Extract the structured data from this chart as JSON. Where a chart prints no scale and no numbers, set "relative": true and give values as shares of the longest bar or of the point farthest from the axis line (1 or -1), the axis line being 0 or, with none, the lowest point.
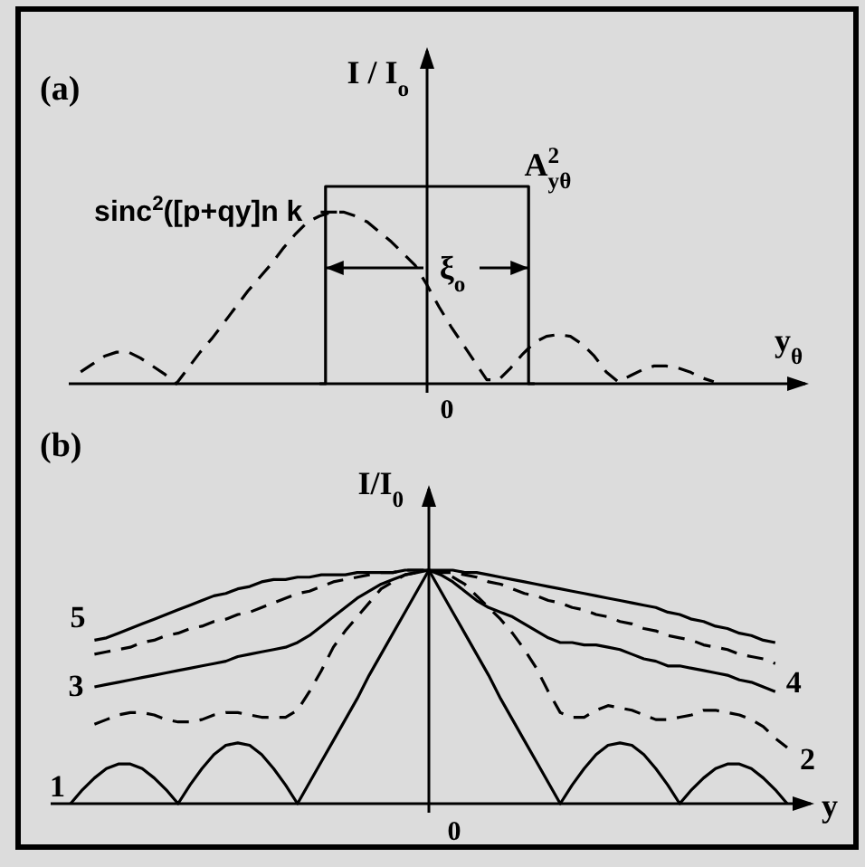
{
  "chart_data": [
    {
      "type": "line",
      "title": "(a)",
      "xlabel": "y$_{θ}$",
      "ylabel": "I / I$_{o}$",
      "relative": true,
      "categories": [
        null,
        null,
        null,
        null,
        null,
        null,
        null,
        null,
        null,
        null,
        null,
        null,
        null,
        null,
        null,
        null,
        null,
        null,
        null,
        null,
        null,
        null,
        null,
        null,
        null,
        null,
        null,
        null,
        null,
        null,
        null,
        null,
        null,
        null,
        null,
        null,
        null,
        null,
        null,
        null,
        null,
        null,
        null,
        null,
        null,
        null,
        null,
        null,
        null,
        null,
        null,
        null,
        null,
        null,
        null,
        null,
        null,
        null,
        null,
        null,
        null
      ],
      "series": [
        {
          "name": "A$^{2}$$_{yθ}$",
          "type": "step",
          "color": "#000000",
          "line_style": "solid",
          "values": [
            null,
            null,
            null,
            null,
            null,
            null,
            null,
            null,
            null,
            null,
            null,
            null,
            null,
            null,
            null,
            null,
            null,
            null,
            null,
            null,
            null,
            0,
            1,
            1,
            1,
            1,
            1,
            1,
            1,
            1,
            1,
            1,
            1,
            1,
            1,
            1,
            1,
            1,
            1,
            0,
            null,
            null,
            null,
            null,
            null,
            null,
            null,
            null,
            null,
            null,
            null,
            null,
            null,
            null,
            null,
            null,
            null,
            null,
            null,
            null,
            null
          ]
        },
        {
          "name": "sinc$^{2}$([p+qy]n k",
          "type": "line",
          "color": "#000000",
          "line_style": "dashed",
          "values": [
            null,
            0.06,
            0.1,
            0.14,
            0.16,
            0.16,
            0.13,
            0.09,
            0.05,
            0,
            0.08,
            0.16,
            0.23,
            0.31,
            0.39,
            0.47,
            0.54,
            0.61,
            0.69,
            0.76,
            0.82,
            0.85,
            0.87,
            0.87,
            0.85,
            0.82,
            0.77,
            0.72,
            0.66,
            0.6,
            0.5,
            0.39,
            0.29,
            0.2,
            0.11,
            0.02,
            0.02,
            0.08,
            0.15,
            0.21,
            0.24,
            0.25,
            0.24,
            0.2,
            0.14,
            0.06,
            0.01,
            0.04,
            0.07,
            0.09,
            0.09,
            0.08,
            0.06,
            0.03,
            0.01,
            null,
            null,
            null,
            null,
            null,
            null
          ]
        }
      ],
      "annotations": [
        "ξ$_{o}$",
        "0"
      ]
    },
    {
      "type": "line",
      "title": "(b)",
      "xlabel": "y",
      "ylabel": "I/I$_{0}$",
      "relative": true,
      "categories": [
        null,
        null,
        null,
        null,
        null,
        null,
        null,
        null,
        null,
        null,
        null,
        null,
        null,
        null,
        null,
        null,
        null,
        null,
        null,
        null,
        null,
        null,
        null,
        null,
        null,
        null,
        null,
        null,
        null,
        null,
        null,
        null,
        null,
        null,
        null,
        null,
        null,
        null,
        null,
        null,
        null,
        null,
        null,
        null,
        null,
        null,
        null,
        null,
        null,
        null,
        null,
        null,
        null,
        null,
        null,
        null,
        null,
        null,
        null,
        null,
        null
      ],
      "series": [
        {
          "name": "1",
          "color": "#000000",
          "line_style": "solid",
          "values": [
            0,
            0.06,
            0.11,
            0.15,
            0.17,
            0.17,
            0.15,
            0.11,
            0.06,
            0,
            0.08,
            0.15,
            0.21,
            0.25,
            0.26,
            0.25,
            0.21,
            0.15,
            0.08,
            0,
            0.09,
            0.18,
            0.27,
            0.36,
            0.45,
            0.55,
            0.64,
            0.73,
            0.82,
            0.91,
            1,
            0.91,
            0.82,
            0.73,
            0.64,
            0.55,
            0.45,
            0.36,
            0.27,
            0.18,
            0.09,
            0,
            0.08,
            0.15,
            0.21,
            0.25,
            0.26,
            0.25,
            0.21,
            0.15,
            0.08,
            0,
            0.06,
            0.11,
            0.15,
            0.17,
            0.17,
            0.15,
            0.11,
            0.06,
            0
          ]
        },
        {
          "name": "2",
          "color": "#000000",
          "line_style": "dashed",
          "values": [
            null,
            null,
            0.34,
            0.36,
            0.38,
            0.39,
            0.39,
            0.38,
            0.36,
            0.35,
            0.35,
            0.36,
            0.38,
            0.39,
            0.39,
            0.38,
            0.37,
            0.37,
            0.37,
            0.4,
            0.48,
            0.57,
            0.67,
            0.74,
            0.8,
            0.86,
            0.92,
            0.95,
            0.98,
            0.99,
            1,
            0.99,
            0.97,
            0.94,
            0.89,
            0.84,
            0.79,
            0.73,
            0.66,
            0.58,
            0.48,
            0.39,
            0.37,
            0.37,
            0.4,
            0.42,
            0.41,
            0.4,
            0.38,
            0.36,
            0.36,
            0.37,
            0.38,
            0.4,
            0.4,
            0.39,
            0.38,
            0.36,
            0.33,
            0.28,
            0.24
          ]
        },
        {
          "name": "3",
          "color": "#000000",
          "line_style": "solid",
          "values": [
            null,
            null,
            0.5,
            0.51,
            0.52,
            0.53,
            0.54,
            0.55,
            0.56,
            0.57,
            0.58,
            0.59,
            0.6,
            0.61,
            0.63,
            0.64,
            0.65,
            0.66,
            0.67,
            0.69,
            0.72,
            0.76,
            0.8,
            0.84,
            0.88,
            0.91,
            0.94,
            0.96,
            0.98,
            0.99,
            1,
            0.98,
            0.95,
            0.91,
            0.87,
            0.84,
            0.82,
            0.8,
            0.77,
            0.74,
            0.71,
            0.69,
            0.69,
            0.68,
            0.68,
            0.67,
            0.66,
            0.64,
            0.62,
            0.61,
            0.59,
            0.59,
            0.58,
            0.57,
            0.56,
            0.55,
            0.53,
            0.52,
            0.5,
            0.48,
            null
          ]
        },
        {
          "name": "4",
          "color": "#000000",
          "line_style": "dashed",
          "values": [
            null,
            null,
            0.64,
            0.65,
            0.66,
            0.67,
            0.69,
            0.7,
            0.72,
            0.73,
            0.75,
            0.76,
            0.78,
            0.79,
            0.81,
            0.82,
            0.84,
            0.86,
            0.88,
            0.9,
            0.91,
            0.93,
            0.95,
            0.96,
            0.97,
            0.98,
            0.99,
            0.99,
            1,
            1,
            1,
            0.99,
            0.99,
            0.98,
            0.97,
            0.95,
            0.94,
            0.92,
            0.9,
            0.89,
            0.87,
            0.86,
            0.84,
            0.83,
            0.81,
            0.8,
            0.78,
            0.77,
            0.75,
            0.74,
            0.72,
            0.71,
            0.7,
            0.68,
            0.67,
            0.66,
            0.64,
            0.63,
            0.62,
            0.6,
            null
          ]
        },
        {
          "name": "5",
          "color": "#000000",
          "line_style": "solid",
          "values": [
            null,
            null,
            0.7,
            0.71,
            0.73,
            0.75,
            0.77,
            0.79,
            0.81,
            0.83,
            0.85,
            0.87,
            0.89,
            0.9,
            0.92,
            0.93,
            0.95,
            0.96,
            0.96,
            0.97,
            0.97,
            0.98,
            0.98,
            0.98,
            0.99,
            0.99,
            0.99,
            0.99,
            1,
            1,
            1,
            1,
            1,
            0.99,
            0.99,
            0.98,
            0.97,
            0.96,
            0.95,
            0.94,
            0.93,
            0.92,
            0.91,
            0.9,
            0.89,
            0.88,
            0.87,
            0.86,
            0.85,
            0.84,
            0.82,
            0.81,
            0.79,
            0.78,
            0.76,
            0.75,
            0.73,
            0.72,
            0.7,
            0.69,
            null
          ]
        }
      ],
      "annotations": [
        "0"
      ]
    }
  ]
}
